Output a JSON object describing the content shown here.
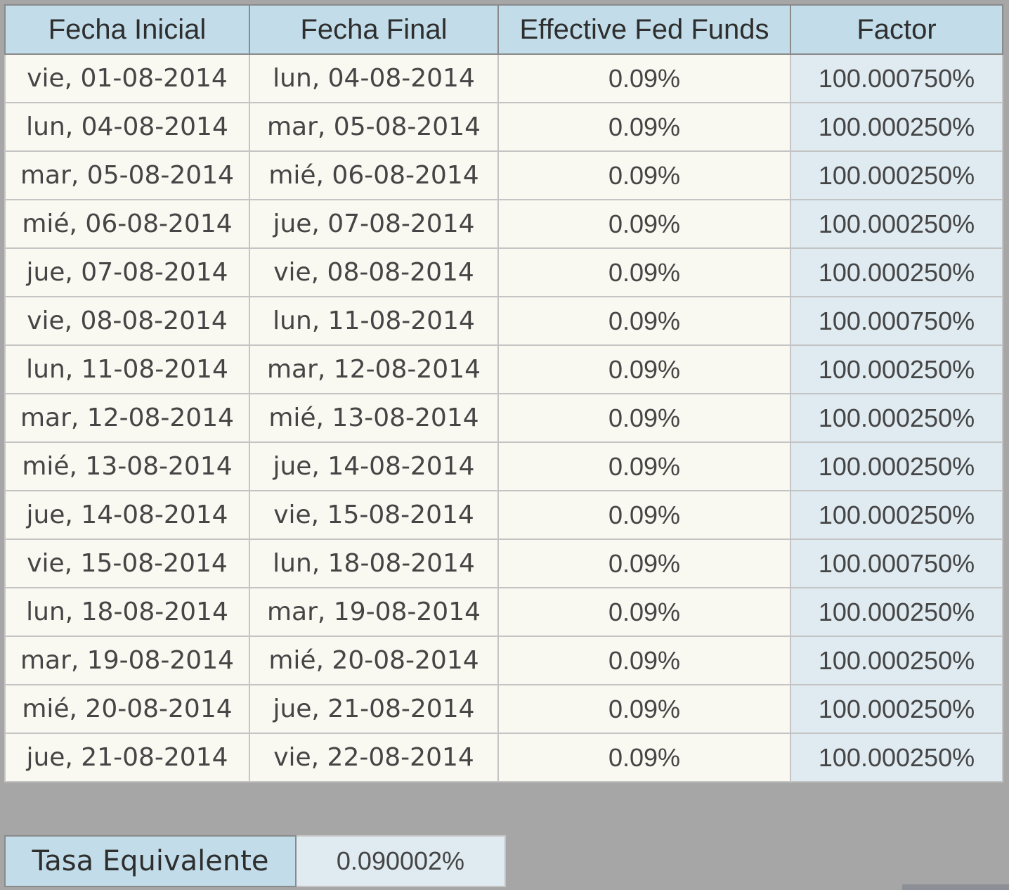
{
  "table": {
    "columns": [
      "Fecha Inicial",
      "Fecha Final",
      "Effective Fed Funds",
      "Factor"
    ],
    "rows": [
      [
        "vie, 01-08-2014",
        "lun, 04-08-2014",
        "0.09%",
        "100.000750%"
      ],
      [
        "lun, 04-08-2014",
        "mar, 05-08-2014",
        "0.09%",
        "100.000250%"
      ],
      [
        "mar, 05-08-2014",
        "mié, 06-08-2014",
        "0.09%",
        "100.000250%"
      ],
      [
        "mié, 06-08-2014",
        "jue, 07-08-2014",
        "0.09%",
        "100.000250%"
      ],
      [
        "jue, 07-08-2014",
        "vie, 08-08-2014",
        "0.09%",
        "100.000250%"
      ],
      [
        "vie, 08-08-2014",
        "lun, 11-08-2014",
        "0.09%",
        "100.000750%"
      ],
      [
        "lun, 11-08-2014",
        "mar, 12-08-2014",
        "0.09%",
        "100.000250%"
      ],
      [
        "mar, 12-08-2014",
        "mié, 13-08-2014",
        "0.09%",
        "100.000250%"
      ],
      [
        "mié, 13-08-2014",
        "jue, 14-08-2014",
        "0.09%",
        "100.000250%"
      ],
      [
        "jue, 14-08-2014",
        "vie, 15-08-2014",
        "0.09%",
        "100.000250%"
      ],
      [
        "vie, 15-08-2014",
        "lun, 18-08-2014",
        "0.09%",
        "100.000750%"
      ],
      [
        "lun, 18-08-2014",
        "mar, 19-08-2014",
        "0.09%",
        "100.000250%"
      ],
      [
        "mar, 19-08-2014",
        "mié, 20-08-2014",
        "0.09%",
        "100.000250%"
      ],
      [
        "mié, 20-08-2014",
        "jue, 21-08-2014",
        "0.09%",
        "100.000250%"
      ],
      [
        "jue, 21-08-2014",
        "vie, 22-08-2014",
        "0.09%",
        "100.000250%"
      ]
    ]
  },
  "summary": {
    "label": "Tasa Equivalente",
    "value": "0.090002%"
  },
  "colors": {
    "page_background": "#a6a6a6",
    "header_background": "#c2dde9",
    "cell_background": "#f9f8f1",
    "factor_background": "#dfeaf1",
    "text": "#454545"
  }
}
